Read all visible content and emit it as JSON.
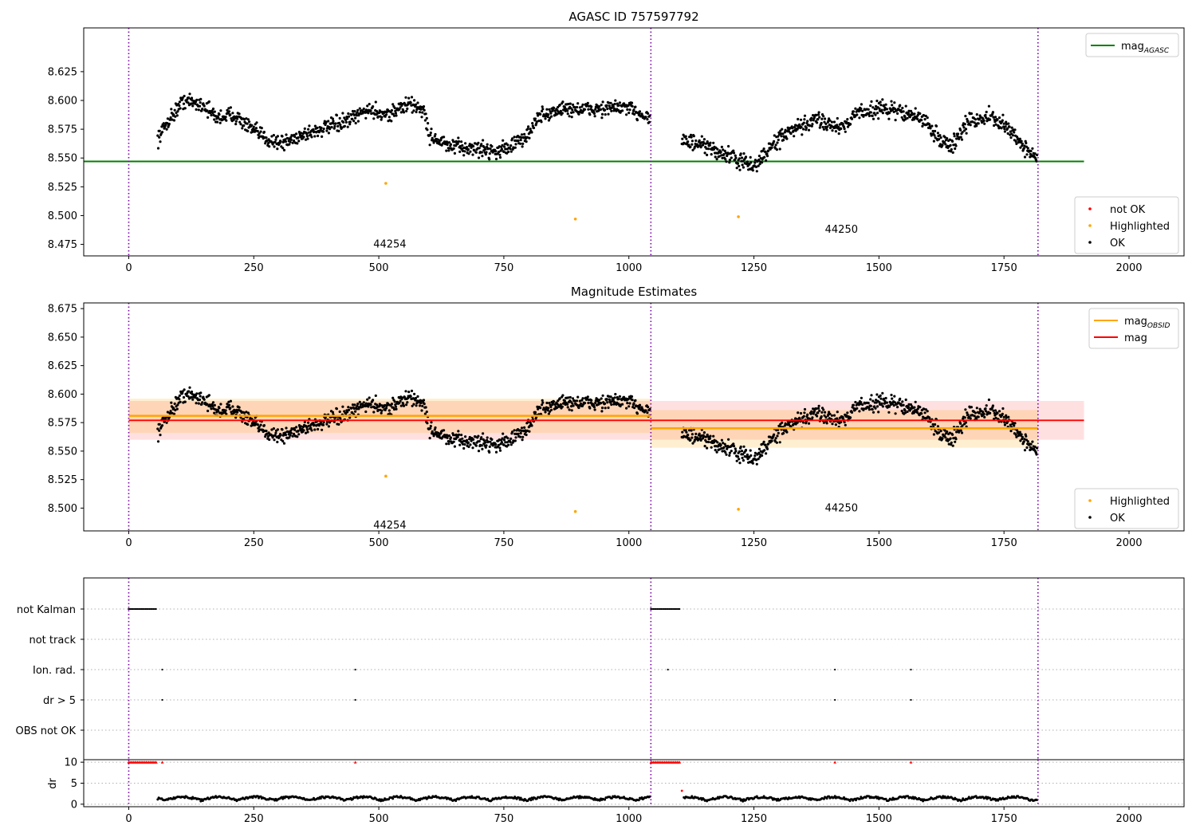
{
  "figure_title": "AGASC ID 757597792",
  "chart_data": [
    {
      "id": "top",
      "type": "scatter",
      "title": "AGASC ID 757597792",
      "xlim": [
        -90,
        2110
      ],
      "ylim": [
        8.465,
        8.663
      ],
      "xticks": [
        0,
        250,
        500,
        750,
        1000,
        1250,
        1500,
        1750,
        2000
      ],
      "yticks": [
        8.475,
        8.5,
        8.525,
        8.55,
        8.575,
        8.6,
        8.625
      ],
      "vlines": [
        0,
        1044,
        1818
      ],
      "hlines": [
        {
          "name": "mag_AGASC",
          "y": 8.547,
          "x0": -90,
          "x1": 1910,
          "color": "#008000"
        }
      ],
      "highlighted": [
        [
          514,
          8.528
        ],
        [
          893,
          8.497
        ],
        [
          1219,
          8.499
        ]
      ],
      "obsid_labels": [
        {
          "text": "44254",
          "x": 522,
          "y": 8.475
        },
        {
          "text": "44250",
          "x": 1425,
          "y": 8.488
        }
      ],
      "legend_top": [
        {
          "label": "mag",
          "sub": "AGASC",
          "color": "#008000"
        }
      ],
      "legend_bottom": [
        {
          "label": "not OK",
          "color": "#ff0000"
        },
        {
          "label": "Highlighted",
          "color": "#ffa500"
        },
        {
          "label": "OK",
          "color": "#000000"
        }
      ]
    },
    {
      "id": "middle",
      "type": "scatter",
      "title": "Magnitude Estimates",
      "xlim": [
        -90,
        2110
      ],
      "ylim": [
        8.48,
        8.68
      ],
      "xticks": [
        0,
        250,
        500,
        750,
        1000,
        1250,
        1500,
        1750,
        2000
      ],
      "yticks": [
        8.5,
        8.525,
        8.55,
        8.575,
        8.6,
        8.625,
        8.65,
        8.675
      ],
      "vlines": [
        0,
        1044,
        1818
      ],
      "mag": {
        "y": 8.577,
        "x0": 0,
        "x1": 1910,
        "band": [
          8.56,
          8.594
        ],
        "color": "#ff0000"
      },
      "mag_obsid": [
        {
          "y": 8.581,
          "x0": 0,
          "x1": 1044,
          "band": [
            8.566,
            8.596
          ]
        },
        {
          "y": 8.57,
          "x0": 1044,
          "x1": 1818,
          "band": [
            8.553,
            8.586
          ]
        }
      ],
      "highlighted": [
        [
          514,
          8.528
        ],
        [
          893,
          8.497
        ],
        [
          1219,
          8.499
        ]
      ],
      "obsid_labels": [
        {
          "text": "44254",
          "x": 522,
          "y": 8.485
        },
        {
          "text": "44250",
          "x": 1425,
          "y": 8.5
        }
      ],
      "legend_top": [
        {
          "label": "mag",
          "sub": "OBSID",
          "color": "#ffa500"
        },
        {
          "label": "mag",
          "sub": "",
          "color": "#ff0000"
        }
      ],
      "legend_bottom": [
        {
          "label": "Highlighted",
          "color": "#ffa500"
        },
        {
          "label": "OK",
          "color": "#000000"
        }
      ]
    },
    {
      "id": "flags",
      "type": "scatter",
      "categories": [
        "not Kalman",
        "not track",
        "Ion. rad.",
        "dr > 5",
        "OBS not OK"
      ],
      "flag_points": {
        "not Kalman": [
          [
            0,
            55
          ],
          [
            1044,
            1102
          ]
        ],
        "not track": [],
        "Ion. rad.": [
          67,
          453,
          1078,
          1412,
          1564
        ],
        "dr > 5": [
          67,
          453,
          1412,
          1564
        ],
        "OBS not OK": []
      },
      "vlines": [
        0,
        1044,
        1818
      ]
    },
    {
      "id": "dr",
      "type": "line",
      "ylabel": "dr",
      "xlim": [
        -90,
        2110
      ],
      "ylim": [
        -0.6,
        10.6
      ],
      "xticks": [
        0,
        250,
        500,
        750,
        1000,
        1250,
        1500,
        1750,
        2000
      ],
      "yticks": [
        0,
        5,
        10
      ],
      "capped_points": {
        "value": 10,
        "ranges": [
          [
            0,
            55
          ],
          [
            1044,
            1102
          ]
        ],
        "singles": [
          67,
          453,
          1412,
          1564
        ]
      },
      "outlier": [
        1106,
        3.2
      ],
      "vlines": [
        0,
        1044,
        1818
      ]
    }
  ],
  "colors": {
    "ok": "#000000",
    "highlighted": "#ffa500",
    "not_ok": "#ff0000",
    "agasc": "#008000",
    "obsid": "#ffa500",
    "mag": "#ff0000",
    "vline": "#7a00a8"
  }
}
